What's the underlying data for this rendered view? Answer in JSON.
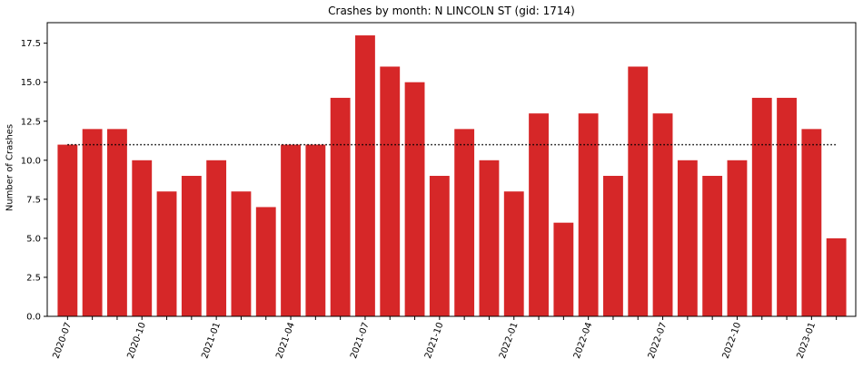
{
  "chart_data": {
    "type": "bar",
    "title": "Crashes by month: N LINCOLN ST (gid: 1714)",
    "xlabel": "",
    "ylabel": "Number of Crashes",
    "months": [
      "2020-07",
      "2020-08",
      "2020-09",
      "2020-10",
      "2020-11",
      "2020-12",
      "2021-01",
      "2021-02",
      "2021-03",
      "2021-04",
      "2021-05",
      "2021-06",
      "2021-07",
      "2021-08",
      "2021-09",
      "2021-10",
      "2021-11",
      "2021-12",
      "2022-01",
      "2022-02",
      "2022-03",
      "2022-04",
      "2022-05",
      "2022-06",
      "2022-07",
      "2022-08",
      "2022-09",
      "2022-10",
      "2022-11",
      "2022-12",
      "2023-01",
      "2023-02"
    ],
    "values": [
      11,
      12,
      12,
      10,
      8,
      9,
      10,
      8,
      7,
      11,
      11,
      14,
      18,
      16,
      15,
      9,
      12,
      10,
      8,
      13,
      6,
      13,
      9,
      16,
      13,
      10,
      9,
      10,
      14,
      14,
      12,
      5
    ],
    "x_tick_labels": [
      "2020-07",
      "2020-10",
      "2021-01",
      "2021-04",
      "2021-07",
      "2021-10",
      "2022-01",
      "2022-04",
      "2022-07",
      "2022-10",
      "2023-01"
    ],
    "y_ticks": [
      "0.0",
      "2.5",
      "5.0",
      "7.5",
      "10.0",
      "12.5",
      "15.0",
      "17.5"
    ],
    "ylim": [
      0,
      18.9
    ],
    "reference_line": {
      "value": 11,
      "style": "dotted"
    },
    "grid": false,
    "colors": {
      "bar": "#d62728",
      "reference_line": "#000000"
    }
  }
}
